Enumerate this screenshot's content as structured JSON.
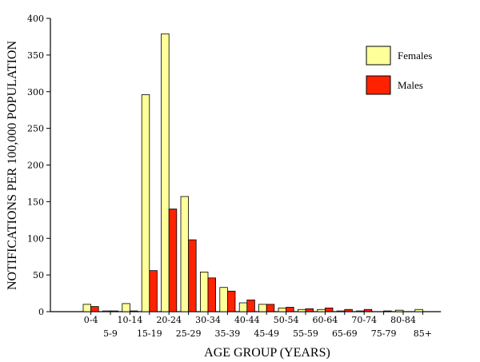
{
  "chart_data": {
    "type": "bar",
    "xlabel": "AGE GROUP (YEARS)",
    "ylabel": "NOTIFICATIONS PER 100,000 POPULATION",
    "ylim": [
      0,
      400
    ],
    "yticks": [
      0,
      50,
      100,
      150,
      200,
      250,
      300,
      350,
      400
    ],
    "categories": [
      "0-4",
      "5-9",
      "10-14",
      "15-19",
      "20-24",
      "25-29",
      "30-34",
      "35-39",
      "40-44",
      "45-49",
      "50-54",
      "55-59",
      "60-64",
      "65-69",
      "70-74",
      "75-79",
      "80-84",
      "85+"
    ],
    "series": [
      {
        "name": "Females",
        "color": "#ffff99",
        "values": [
          10,
          1,
          11,
          296,
          379,
          157,
          54,
          33,
          12,
          10,
          5,
          3,
          3,
          1,
          1,
          0,
          2,
          3
        ]
      },
      {
        "name": "Males",
        "color": "#ff2200",
        "values": [
          7,
          1,
          1,
          56,
          140,
          98,
          46,
          28,
          16,
          10,
          6,
          4,
          5,
          3,
          3,
          1,
          0,
          0
        ]
      }
    ],
    "legend_position": "top-right",
    "grid": false
  }
}
